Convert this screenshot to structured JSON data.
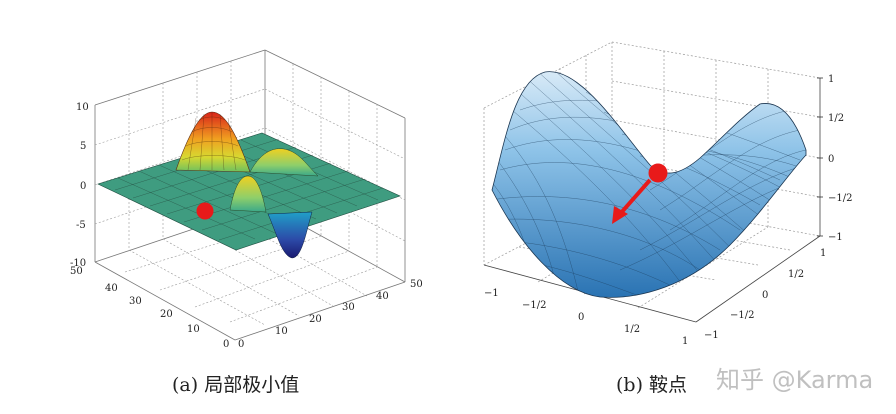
{
  "panel_a": {
    "caption": "(a) 局部极小值",
    "z_ticks": [
      "10",
      "5",
      "0",
      "-5",
      "-10"
    ],
    "x_ticks": [
      "0",
      "10",
      "20",
      "30",
      "40",
      "50"
    ],
    "y_ticks": [
      "50",
      "40",
      "30",
      "20",
      "10",
      "0"
    ],
    "colors": {
      "grid": "#555555",
      "marker": "#e81a1a"
    }
  },
  "panel_b": {
    "caption": "(b) 鞍点",
    "z_ticks": [
      "1",
      "1/2",
      "0",
      "−1/2",
      "−1"
    ],
    "x_ticks": [
      "−1",
      "−1/2",
      "0",
      "1/2",
      "1"
    ],
    "y_ticks": [
      "1",
      "1/2",
      "0",
      "−1/2",
      "−1"
    ],
    "colors": {
      "surface_light": "#cfe4f4",
      "surface_dark": "#2e78b8",
      "marker": "#e81a1a"
    }
  },
  "watermark": "知乎 @Karma"
}
